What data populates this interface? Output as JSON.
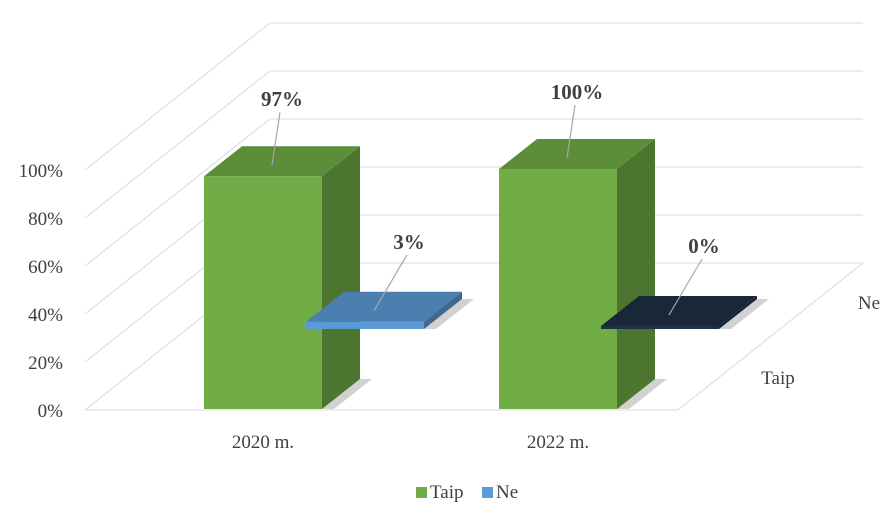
{
  "chart_data": {
    "type": "bar",
    "subtype": "3d-column",
    "title": "",
    "categories": [
      "2020 m.",
      "2022 m."
    ],
    "series": [
      {
        "name": "Taip",
        "values": [
          97,
          100
        ],
        "labels": [
          "97%",
          "100%"
        ],
        "color": "#70ad47"
      },
      {
        "name": "Ne",
        "values": [
          3,
          0
        ],
        "labels": [
          "3%",
          "0%"
        ],
        "color": "#5b9bd5"
      }
    ],
    "depth_labels": [
      "Taip",
      "Ne"
    ],
    "y_ticks": [
      "0%",
      "20%",
      "40%",
      "60%",
      "80%",
      "100%"
    ],
    "ylim": [
      0,
      100
    ],
    "grid": true,
    "legend": "bottom-center"
  }
}
